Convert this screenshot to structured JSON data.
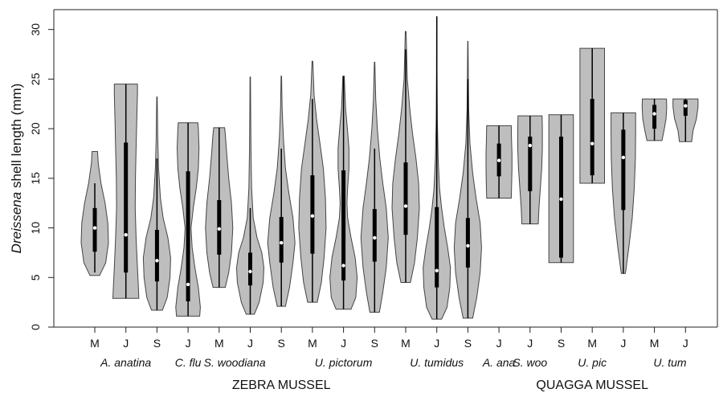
{
  "chart_data": {
    "type": "violin",
    "ylabel": {
      "italic": "Dreissena",
      "rest": " shell length (mm)"
    },
    "ylim": [
      0,
      32
    ],
    "yticks": [
      0,
      5,
      10,
      15,
      20,
      25,
      30
    ],
    "grid": false,
    "legend": "none",
    "colors": {
      "fill": "#bebebe",
      "outline": "#444444",
      "box": "#000000",
      "median": "#ffffff"
    },
    "x_labels": [
      "M",
      "J",
      "S",
      "J",
      "M",
      "J",
      "S",
      "M",
      "J",
      "S",
      "M",
      "J",
      "S",
      "J",
      "J",
      "S",
      "M",
      "J",
      "M",
      "J"
    ],
    "species_labels": [
      {
        "text": "A. anatina",
        "from": 0,
        "to": 2
      },
      {
        "text": "C. flu",
        "from": 3,
        "to": 3
      },
      {
        "text": "S. woodiana",
        "from": 4,
        "to": 5
      },
      {
        "text": "U. pictorum",
        "from": 7,
        "to": 9
      },
      {
        "text": "U. tumidus",
        "from": 10,
        "to": 12
      },
      {
        "text": "A. ana",
        "from": 13,
        "to": 13
      },
      {
        "text": "S. woo",
        "from": 14,
        "to": 14
      },
      {
        "text": "U. pic",
        "from": 15,
        "to": 17
      },
      {
        "text": "U. tum",
        "from": 18,
        "to": 19
      }
    ],
    "group_labels": [
      {
        "text": "ZEBRA MUSSEL",
        "from": 0,
        "to": 12
      },
      {
        "text": "QUAGGA MUSSEL",
        "from": 13,
        "to": 19
      }
    ],
    "violins": [
      {
        "min": 5.2,
        "max": 17.7,
        "q1": 7.6,
        "median": 10.0,
        "q3": 12.0,
        "whisker_lo": 5.5,
        "whisker_hi": 14.5,
        "shape": [
          [
            5.2,
            0.35
          ],
          [
            6.5,
            0.8
          ],
          [
            8.5,
            1.0
          ],
          [
            10.5,
            0.95
          ],
          [
            12.5,
            0.75
          ],
          [
            14.5,
            0.45
          ],
          [
            16.5,
            0.25
          ],
          [
            17.7,
            0.2
          ]
        ]
      },
      {
        "min": 2.9,
        "max": 24.5,
        "q1": 5.5,
        "median": 9.3,
        "q3": 18.6,
        "whisker_lo": 2.9,
        "whisker_hi": 24.5,
        "shape": [
          [
            2.9,
            0.95
          ],
          [
            4,
            0.92
          ],
          [
            6,
            0.85
          ],
          [
            9,
            0.75
          ],
          [
            12,
            0.68
          ],
          [
            15,
            0.7
          ],
          [
            18,
            0.75
          ],
          [
            21,
            0.8
          ],
          [
            23.5,
            0.85
          ],
          [
            24.5,
            0.85
          ]
        ]
      },
      {
        "min": 1.7,
        "max": 23.2,
        "q1": 4.6,
        "median": 6.7,
        "q3": 9.8,
        "whisker_lo": 1.7,
        "whisker_hi": 17.0,
        "shape": [
          [
            1.7,
            0.4
          ],
          [
            3,
            0.75
          ],
          [
            5,
            0.95
          ],
          [
            7,
            1.0
          ],
          [
            9,
            0.8
          ],
          [
            11,
            0.45
          ],
          [
            13,
            0.25
          ],
          [
            16,
            0.12
          ],
          [
            19,
            0.06
          ],
          [
            23.2,
            0.02
          ]
        ]
      },
      {
        "min": 1.1,
        "max": 20.6,
        "q1": 2.6,
        "median": 4.3,
        "q3": 15.7,
        "whisker_lo": 1.1,
        "whisker_hi": 20.6,
        "shape": [
          [
            1.1,
            0.85
          ],
          [
            2,
            0.9
          ],
          [
            4,
            0.75
          ],
          [
            6,
            0.5
          ],
          [
            8,
            0.3
          ],
          [
            10,
            0.22
          ],
          [
            12,
            0.38
          ],
          [
            14,
            0.6
          ],
          [
            16,
            0.75
          ],
          [
            18,
            0.8
          ],
          [
            20,
            0.75
          ],
          [
            20.6,
            0.72
          ]
        ]
      },
      {
        "min": 4.0,
        "max": 20.1,
        "q1": 7.3,
        "median": 9.9,
        "q3": 12.8,
        "whisker_lo": 4.0,
        "whisker_hi": 20.1,
        "shape": [
          [
            4.0,
            0.45
          ],
          [
            5.5,
            0.7
          ],
          [
            7.5,
            0.9
          ],
          [
            10,
            1.0
          ],
          [
            12.5,
            0.9
          ],
          [
            15,
            0.7
          ],
          [
            17.5,
            0.55
          ],
          [
            19.5,
            0.45
          ],
          [
            20.1,
            0.4
          ]
        ]
      },
      {
        "min": 1.3,
        "max": 25.2,
        "q1": 4.2,
        "median": 5.6,
        "q3": 7.5,
        "whisker_lo": 1.3,
        "whisker_hi": 12.0,
        "shape": [
          [
            1.3,
            0.3
          ],
          [
            2.5,
            0.65
          ],
          [
            4.5,
            0.95
          ],
          [
            6,
            1.0
          ],
          [
            7.5,
            0.85
          ],
          [
            9,
            0.5
          ],
          [
            11,
            0.22
          ],
          [
            14,
            0.1
          ],
          [
            18,
            0.05
          ],
          [
            22,
            0.03
          ],
          [
            25.2,
            0.02
          ]
        ]
      },
      {
        "min": 2.1,
        "max": 25.3,
        "q1": 6.5,
        "median": 8.5,
        "q3": 11.1,
        "whisker_lo": 2.1,
        "whisker_hi": 18.0,
        "shape": [
          [
            2.1,
            0.3
          ],
          [
            4,
            0.6
          ],
          [
            6.5,
            0.85
          ],
          [
            8.5,
            1.0
          ],
          [
            11,
            0.85
          ],
          [
            13.5,
            0.55
          ],
          [
            16,
            0.3
          ],
          [
            19,
            0.15
          ],
          [
            22,
            0.06
          ],
          [
            25.3,
            0.02
          ]
        ]
      },
      {
        "min": 2.5,
        "max": 26.8,
        "q1": 7.4,
        "median": 11.2,
        "q3": 15.3,
        "whisker_lo": 2.5,
        "whisker_hi": 23.0,
        "shape": [
          [
            2.5,
            0.35
          ],
          [
            4.5,
            0.65
          ],
          [
            7,
            0.85
          ],
          [
            10,
            1.0
          ],
          [
            13,
            0.95
          ],
          [
            16,
            0.8
          ],
          [
            18.5,
            0.55
          ],
          [
            21,
            0.3
          ],
          [
            23.5,
            0.12
          ],
          [
            26.8,
            0.03
          ]
        ]
      },
      {
        "min": 1.8,
        "max": 25.3,
        "q1": 4.7,
        "median": 6.2,
        "q3": 15.8,
        "whisker_lo": 1.8,
        "whisker_hi": 25.3,
        "shape": [
          [
            1.8,
            0.55
          ],
          [
            3,
            0.9
          ],
          [
            5,
            1.0
          ],
          [
            7,
            0.85
          ],
          [
            9,
            0.55
          ],
          [
            11,
            0.3
          ],
          [
            12.5,
            0.25
          ],
          [
            14,
            0.3
          ],
          [
            16,
            0.4
          ],
          [
            18,
            0.4
          ],
          [
            20,
            0.28
          ],
          [
            22,
            0.15
          ],
          [
            25.3,
            0.05
          ]
        ]
      },
      {
        "min": 1.5,
        "max": 26.7,
        "q1": 6.6,
        "median": 9.0,
        "q3": 11.9,
        "whisker_lo": 1.5,
        "whisker_hi": 18.0,
        "shape": [
          [
            1.5,
            0.35
          ],
          [
            3.5,
            0.6
          ],
          [
            6,
            0.85
          ],
          [
            9,
            1.0
          ],
          [
            12,
            0.85
          ],
          [
            14.5,
            0.6
          ],
          [
            17,
            0.38
          ],
          [
            20,
            0.2
          ],
          [
            23,
            0.08
          ],
          [
            26.7,
            0.02
          ]
        ]
      },
      {
        "min": 4.5,
        "max": 29.8,
        "q1": 9.3,
        "median": 12.2,
        "q3": 16.6,
        "whisker_lo": 4.5,
        "whisker_hi": 28.0,
        "shape": [
          [
            4.5,
            0.35
          ],
          [
            6.5,
            0.65
          ],
          [
            9,
            0.85
          ],
          [
            12,
            1.0
          ],
          [
            14.5,
            0.95
          ],
          [
            17,
            0.75
          ],
          [
            19.5,
            0.5
          ],
          [
            22,
            0.3
          ],
          [
            25,
            0.12
          ],
          [
            29.8,
            0.03
          ]
        ]
      },
      {
        "min": 0.8,
        "max": 31.3,
        "q1": 4.0,
        "median": 5.7,
        "q3": 12.1,
        "whisker_lo": 0.8,
        "whisker_hi": 31.3,
        "shape": [
          [
            0.8,
            0.35
          ],
          [
            2,
            0.75
          ],
          [
            4,
            0.95
          ],
          [
            6,
            1.0
          ],
          [
            8,
            0.8
          ],
          [
            10,
            0.55
          ],
          [
            12,
            0.35
          ],
          [
            14,
            0.2
          ],
          [
            17,
            0.1
          ],
          [
            21,
            0.04
          ],
          [
            26,
            0.02
          ],
          [
            31.3,
            0.01
          ]
        ]
      },
      {
        "min": 0.9,
        "max": 28.8,
        "q1": 6.0,
        "median": 8.2,
        "q3": 11.0,
        "whisker_lo": 0.9,
        "whisker_hi": 25.0,
        "shape": [
          [
            0.9,
            0.35
          ],
          [
            3,
            0.65
          ],
          [
            5.5,
            0.9
          ],
          [
            8,
            1.0
          ],
          [
            10.5,
            0.9
          ],
          [
            13,
            0.6
          ],
          [
            15.5,
            0.35
          ],
          [
            18.5,
            0.15
          ],
          [
            22,
            0.06
          ],
          [
            28.8,
            0.01
          ]
        ]
      },
      {
        "min": 13.0,
        "max": 20.3,
        "q1": 15.2,
        "median": 16.8,
        "q3": 18.5,
        "whisker_lo": 13.0,
        "whisker_hi": 20.3,
        "shape": [
          [
            13.0,
            0.9
          ],
          [
            14.5,
            0.93
          ],
          [
            16,
            0.95
          ],
          [
            17.5,
            0.95
          ],
          [
            19,
            0.92
          ],
          [
            20.3,
            0.9
          ]
        ]
      },
      {
        "min": 10.4,
        "max": 21.3,
        "q1": 13.7,
        "median": 18.3,
        "q3": 19.2,
        "whisker_lo": 10.4,
        "whisker_hi": 21.3,
        "shape": [
          [
            10.4,
            0.6
          ],
          [
            12,
            0.65
          ],
          [
            14,
            0.75
          ],
          [
            16,
            0.85
          ],
          [
            18,
            0.9
          ],
          [
            20,
            0.9
          ],
          [
            21.3,
            0.88
          ]
        ]
      },
      {
        "min": 6.5,
        "max": 21.4,
        "q1": 7.0,
        "median": 12.9,
        "q3": 19.2,
        "whisker_lo": 6.5,
        "whisker_hi": 21.4,
        "shape": [
          [
            6.5,
            0.9
          ],
          [
            9,
            0.9
          ],
          [
            12,
            0.9
          ],
          [
            15,
            0.9
          ],
          [
            18,
            0.9
          ],
          [
            21.4,
            0.9
          ]
        ]
      },
      {
        "min": 14.5,
        "max": 28.1,
        "q1": 15.3,
        "median": 18.5,
        "q3": 23.0,
        "whisker_lo": 14.5,
        "whisker_hi": 28.1,
        "shape": [
          [
            14.5,
            0.9
          ],
          [
            17,
            0.9
          ],
          [
            20,
            0.9
          ],
          [
            23,
            0.9
          ],
          [
            26,
            0.9
          ],
          [
            28.1,
            0.9
          ]
        ]
      },
      {
        "min": 5.4,
        "max": 21.6,
        "q1": 11.8,
        "median": 17.1,
        "q3": 19.9,
        "whisker_lo": 5.4,
        "whisker_hi": 21.6,
        "shape": [
          [
            5.4,
            0.15
          ],
          [
            8,
            0.4
          ],
          [
            11,
            0.65
          ],
          [
            14,
            0.8
          ],
          [
            17,
            0.88
          ],
          [
            19.5,
            0.9
          ],
          [
            21.6,
            0.9
          ]
        ]
      },
      {
        "min": 18.8,
        "max": 23.0,
        "q1": 20.0,
        "median": 21.5,
        "q3": 22.4,
        "whisker_lo": 18.8,
        "whisker_hi": 23.0,
        "shape": [
          [
            18.8,
            0.55
          ],
          [
            19.8,
            0.7
          ],
          [
            21,
            0.85
          ],
          [
            22.2,
            0.9
          ],
          [
            23.0,
            0.88
          ]
        ]
      },
      {
        "min": 18.7,
        "max": 23.0,
        "q1": 21.3,
        "median": 22.3,
        "q3": 22.9,
        "whisker_lo": 18.7,
        "whisker_hi": 23.0,
        "shape": [
          [
            18.7,
            0.45
          ],
          [
            19.8,
            0.55
          ],
          [
            21,
            0.8
          ],
          [
            22.2,
            0.92
          ],
          [
            23.0,
            0.92
          ]
        ]
      }
    ]
  }
}
